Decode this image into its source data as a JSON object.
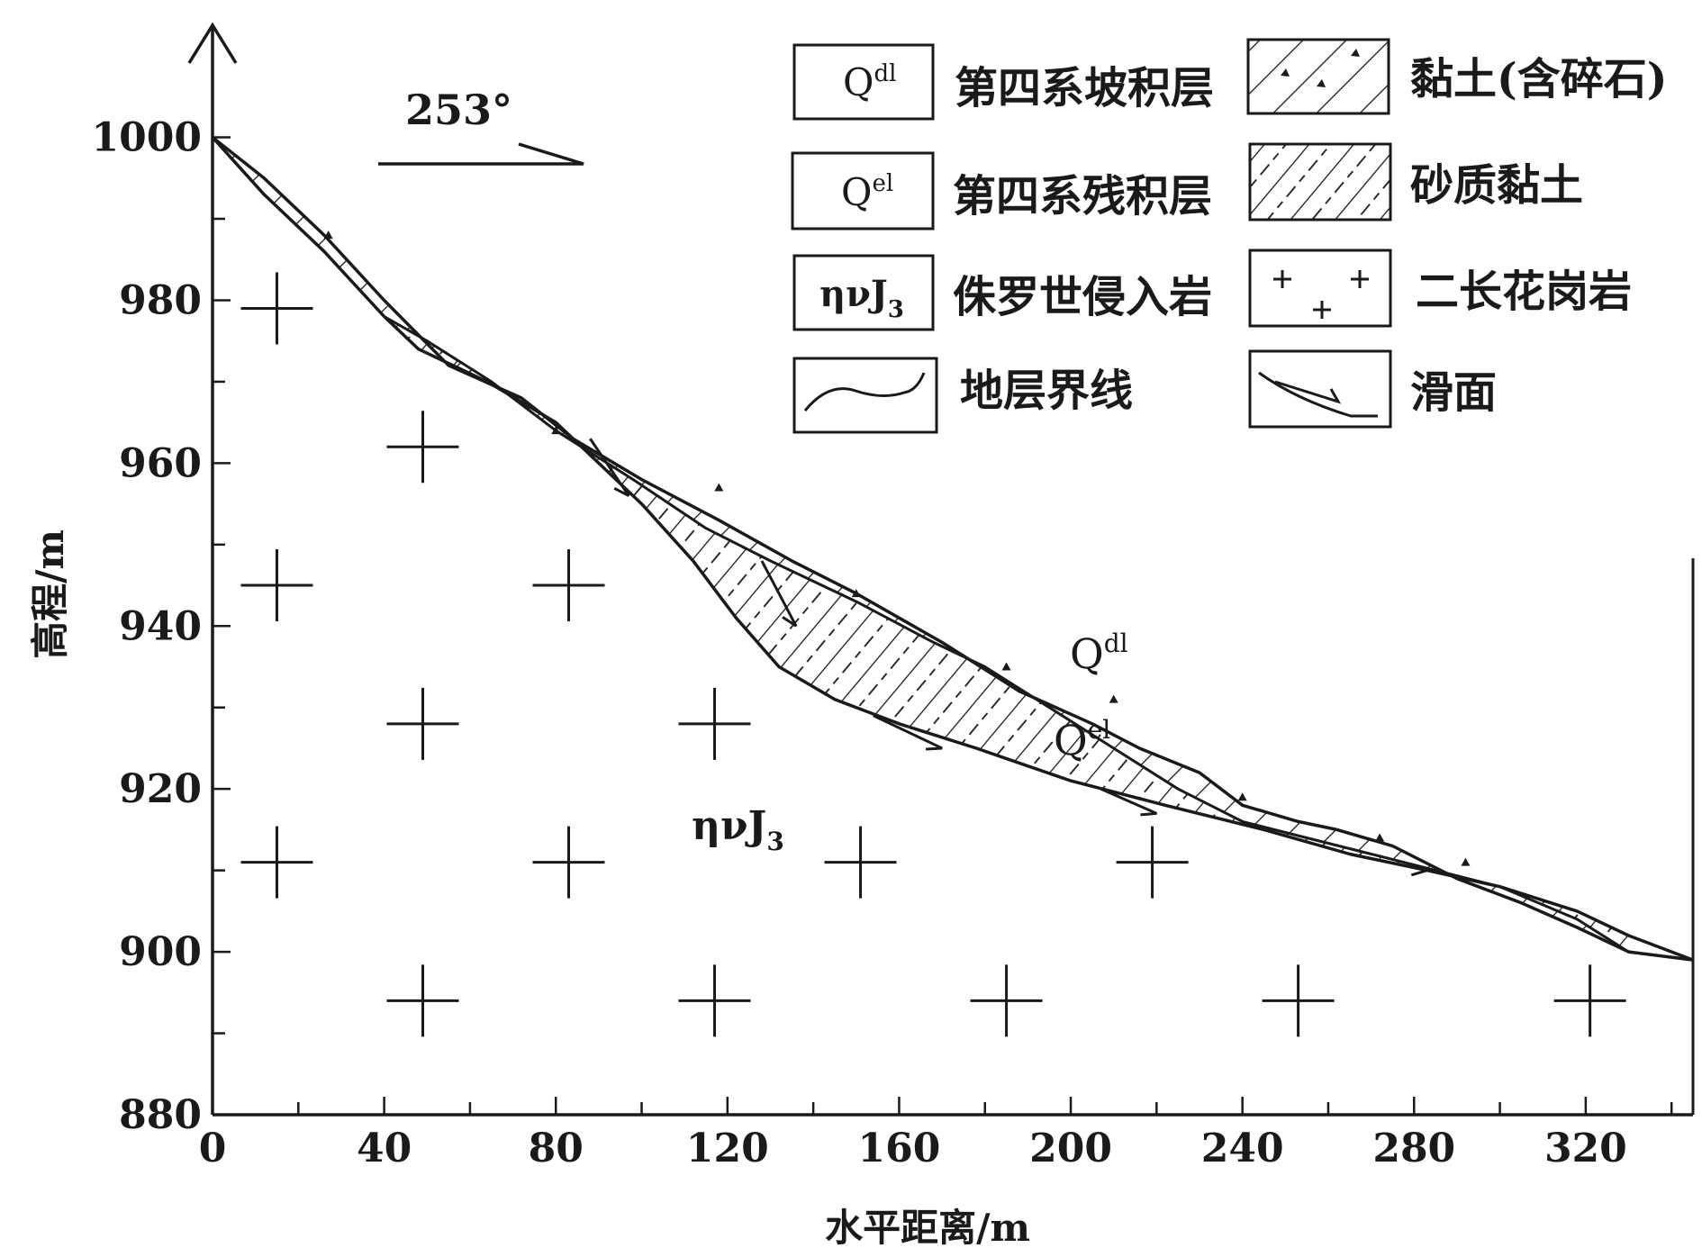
{
  "chart_data": {
    "type": "geologic-cross-section",
    "title": "",
    "xlabel": "水平距离/m",
    "ylabel": "高程/m",
    "xlim": [
      0,
      345
    ],
    "ylim": [
      880,
      1012
    ],
    "x_ticks": [
      "0",
      "40",
      "80",
      "120",
      "160",
      "200",
      "240",
      "280",
      "320"
    ],
    "y_ticks": [
      "880",
      "900",
      "920",
      "940",
      "960",
      "980",
      "1000"
    ],
    "direction": {
      "label": "253°"
    },
    "section_labels": {
      "qdl_main": "Q",
      "qdl_sup": "dl",
      "qel_main": "Q",
      "qel_sup": "el",
      "bedrock_main": "ηνJ",
      "bedrock_sub": "3"
    },
    "surfaces": {
      "ground": [
        [
          0,
          1000
        ],
        [
          12,
          995
        ],
        [
          26,
          988
        ],
        [
          40,
          980
        ],
        [
          55,
          972
        ],
        [
          72,
          968
        ],
        [
          84,
          963
        ],
        [
          100,
          958
        ],
        [
          118,
          953
        ],
        [
          135,
          948
        ],
        [
          150,
          944
        ],
        [
          170,
          938
        ],
        [
          188,
          932
        ],
        [
          205,
          928
        ],
        [
          216,
          925
        ],
        [
          230,
          922
        ],
        [
          240,
          918
        ],
        [
          253,
          916
        ],
        [
          262,
          915
        ],
        [
          275,
          913
        ],
        [
          290,
          909
        ],
        [
          305,
          906
        ],
        [
          318,
          903
        ],
        [
          330,
          900
        ],
        [
          345,
          899
        ]
      ],
      "clay_base": [
        [
          0,
          1000
        ],
        [
          12,
          993
        ],
        [
          26,
          986
        ],
        [
          40,
          978
        ],
        [
          50,
          975
        ],
        [
          65,
          970
        ],
        [
          80,
          964
        ],
        [
          98,
          958
        ],
        [
          115,
          952
        ],
        [
          130,
          948
        ],
        [
          150,
          943
        ],
        [
          168,
          938
        ],
        [
          180,
          935
        ],
        [
          195,
          930
        ],
        [
          210,
          925
        ],
        [
          225,
          920
        ],
        [
          240,
          916
        ],
        [
          255,
          914
        ],
        [
          270,
          912
        ],
        [
          285,
          910
        ],
        [
          300,
          908
        ],
        [
          318,
          904
        ],
        [
          330,
          900
        ]
      ],
      "bedrock_top": [
        [
          0,
          1000
        ],
        [
          12,
          993
        ],
        [
          26,
          986
        ],
        [
          40,
          978
        ],
        [
          48,
          974
        ],
        [
          64,
          970
        ],
        [
          80,
          965
        ],
        [
          90,
          960
        ],
        [
          100,
          955
        ],
        [
          112,
          948
        ],
        [
          122,
          941
        ],
        [
          132,
          935
        ],
        [
          145,
          931
        ],
        [
          160,
          928
        ],
        [
          178,
          925
        ],
        [
          200,
          921
        ],
        [
          222,
          918
        ],
        [
          245,
          915
        ],
        [
          265,
          912
        ],
        [
          283,
          910
        ],
        [
          300,
          908
        ],
        [
          318,
          905
        ],
        [
          330,
          902
        ],
        [
          345,
          899
        ]
      ]
    },
    "slip_markers": [
      {
        "x1": 88,
        "y1": 963,
        "x2": 97,
        "y2": 956
      },
      {
        "x1": 128,
        "y1": 948,
        "x2": 136,
        "y2": 940
      },
      {
        "x1": 154,
        "y1": 929,
        "x2": 170,
        "y2": 925
      },
      {
        "x1": 207,
        "y1": 920,
        "x2": 220,
        "y2": 917
      },
      {
        "x1": 265,
        "y1": 912,
        "x2": 283,
        "y2": 910
      }
    ],
    "granite_markers": [
      [
        15,
        979
      ],
      [
        49,
        962
      ],
      [
        15,
        945
      ],
      [
        83,
        945
      ],
      [
        49,
        928
      ],
      [
        117,
        928
      ],
      [
        15,
        911
      ],
      [
        83,
        911
      ],
      [
        151,
        911
      ],
      [
        219,
        911
      ],
      [
        49,
        894
      ],
      [
        117,
        894
      ],
      [
        185,
        894
      ],
      [
        253,
        894
      ],
      [
        321,
        894
      ]
    ]
  },
  "legend": [
    {
      "symbol": "qdl",
      "code_main": "Q",
      "code_sup": "dl",
      "label": "第四系坡积层"
    },
    {
      "symbol": "clay_gravel",
      "label": "黏土(含碎石)"
    },
    {
      "symbol": "qel",
      "code_main": "Q",
      "code_sup": "el",
      "label": "第四系残积层"
    },
    {
      "symbol": "sandy_clay",
      "label": "砂质黏土"
    },
    {
      "symbol": "jurassic",
      "code_main": "ηνJ",
      "code_sub": "3",
      "label": "侏罗世侵入岩"
    },
    {
      "symbol": "granite",
      "label": "二长花岗岩"
    },
    {
      "symbol": "boundary",
      "label": "地层界线"
    },
    {
      "symbol": "slip",
      "label": "滑面"
    }
  ],
  "colors": {
    "ink": "#1a1a1a",
    "background": "#ffffff"
  }
}
